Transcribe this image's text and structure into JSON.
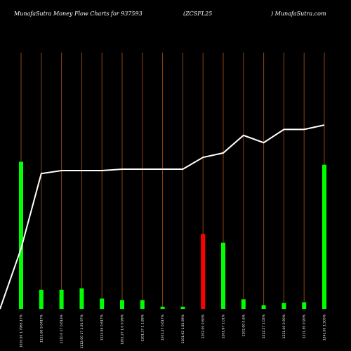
{
  "header": {
    "left": "MunafaSutra  Money Flow  Charts for 937593",
    "middle": "(ZCSFL25",
    "right": ") MunafaSutra.com"
  },
  "colors": {
    "background": "#000000",
    "gridline": "#8B4513",
    "bar_up": "#00ff00",
    "bar_down": "#ff0000",
    "line": "#ffffff"
  },
  "chart_data": {
    "type": "bar",
    "title": "MunafaSutra  Money Flow  Charts for 937593",
    "categories": [
      "1010.00 1.7963.17%",
      "1111.60 9.0417%",
      "1110.0 17 0.613%",
      "1112.00 17 1.91 97%",
      "1124.94 0.617%",
      "1201.27 1.0 0.99%",
      "1201.27 1 1.99%",
      "1201.27 0.617%",
      "1201.62 1.81.99%",
      "1202.00 0.60%",
      "1201.67 1.01%",
      "1202.00 0.6%",
      "1212.27 1.02%",
      "1221.00 0.90%",
      "1211.50 0.90%",
      "1241.00 1.500%"
    ],
    "series": [
      {
        "type": "bar",
        "values": [
          100,
          13,
          13,
          14,
          7,
          6,
          6,
          1.5,
          1.5,
          51,
          45,
          6.5,
          2.5,
          4,
          4.5,
          98
        ],
        "colors": [
          "#00ff00",
          "#00ff00",
          "#00ff00",
          "#00ff00",
          "#00ff00",
          "#00ff00",
          "#00ff00",
          "#00ff00",
          "#00ff00",
          "#ff0000",
          "#00ff00",
          "#00ff00",
          "#00ff00",
          "#00ff00",
          "#00ff00",
          "#00ff00"
        ]
      },
      {
        "type": "line",
        "values": [
          41,
          92,
          94,
          94,
          94,
          95,
          95,
          95,
          95,
          103,
          106,
          118,
          113,
          122,
          122,
          125
        ]
      }
    ],
    "ylim": [
      0,
      210
    ],
    "grid": true,
    "legend": "none"
  }
}
